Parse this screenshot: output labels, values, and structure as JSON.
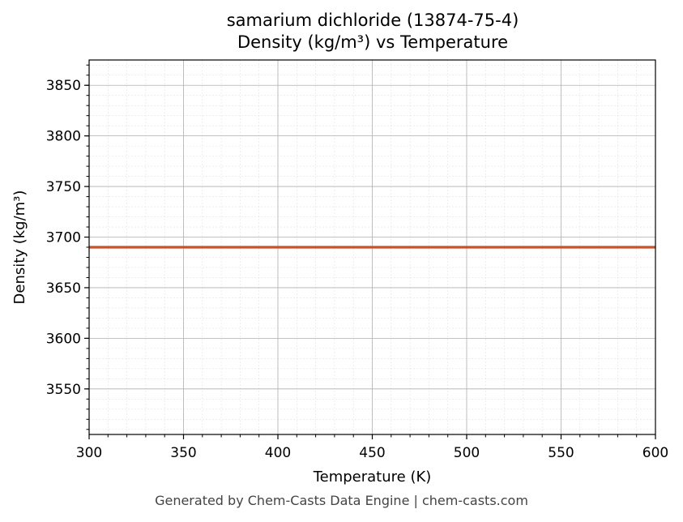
{
  "chart_data": {
    "type": "line",
    "title_line1": "samarium dichloride (13874-75-4)",
    "title_line2": "Density (kg/m³) vs Temperature",
    "xlabel": "Temperature (K)",
    "ylabel": "Density (kg/m³)",
    "xlim": [
      300,
      600
    ],
    "ylim": [
      3505,
      3875
    ],
    "xticks": [
      300,
      350,
      400,
      450,
      500,
      550,
      600
    ],
    "yticks": [
      3550,
      3600,
      3650,
      3700,
      3750,
      3800,
      3850
    ],
    "grid": true,
    "series": [
      {
        "color": "#c8522a",
        "x": [
          300,
          600
        ],
        "y": [
          3690,
          3690
        ]
      }
    ]
  },
  "footer": "Generated by Chem-Casts Data Engine | chem-casts.com"
}
